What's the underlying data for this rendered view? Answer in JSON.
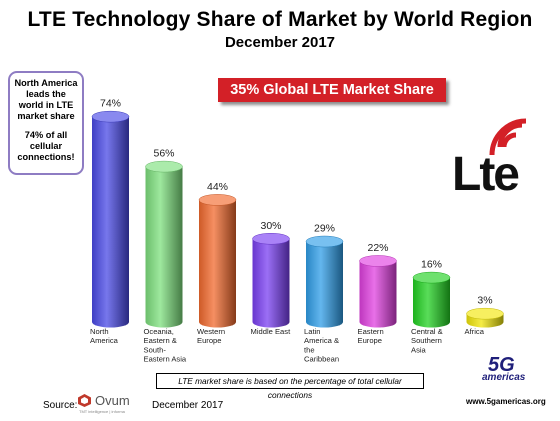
{
  "header": {
    "title": "LTE Technology Share of Market by World Region",
    "subtitle": "December 2017"
  },
  "callout": {
    "line1": "North America",
    "line2": "leads the",
    "line3": "world in LTE",
    "line4": "market share",
    "line5": "74% of all",
    "line6": "cellular",
    "line7": "connections!"
  },
  "banner": "35% Global LTE Market Share",
  "note": "LTE market share is based on the percentage of total cellular connections",
  "footer": {
    "source_label": "Source:",
    "source_name": "Ovum",
    "source_tagline": "TMT intelligence | informa",
    "source_date": "December 2017",
    "url": "www.5gamericas.org",
    "logo_5g": "5G",
    "logo_americas": "americas"
  },
  "lte_logo": {
    "text": "Lte",
    "color": "#d32027"
  },
  "chart_data": {
    "type": "bar",
    "title": "LTE Technology Share of Market by World Region",
    "subtitle": "December 2017",
    "categories": [
      [
        "North",
        "America"
      ],
      [
        "Oceania,",
        "Eastern &",
        "South-",
        "Eastern Asia"
      ],
      [
        "Western",
        "Europe"
      ],
      [
        "Middle East"
      ],
      [
        "Latin",
        "America &",
        "the",
        "Caribbean"
      ],
      [
        "Eastern",
        "Europe"
      ],
      [
        "Central &",
        "Southern",
        "Asia"
      ],
      [
        "Africa"
      ]
    ],
    "values": [
      74,
      56,
      44,
      30,
      29,
      22,
      16,
      3
    ],
    "value_labels": [
      "74%",
      "56%",
      "44%",
      "30%",
      "29%",
      "22%",
      "16%",
      "3%"
    ],
    "colors": [
      "#4a4ae6",
      "#7ee07e",
      "#f26a2e",
      "#7a3ff2",
      "#2f9ee8",
      "#e040e0",
      "#22d122",
      "#f2e60a"
    ],
    "ylim": [
      0,
      80
    ],
    "grid": false,
    "legend": "none"
  }
}
